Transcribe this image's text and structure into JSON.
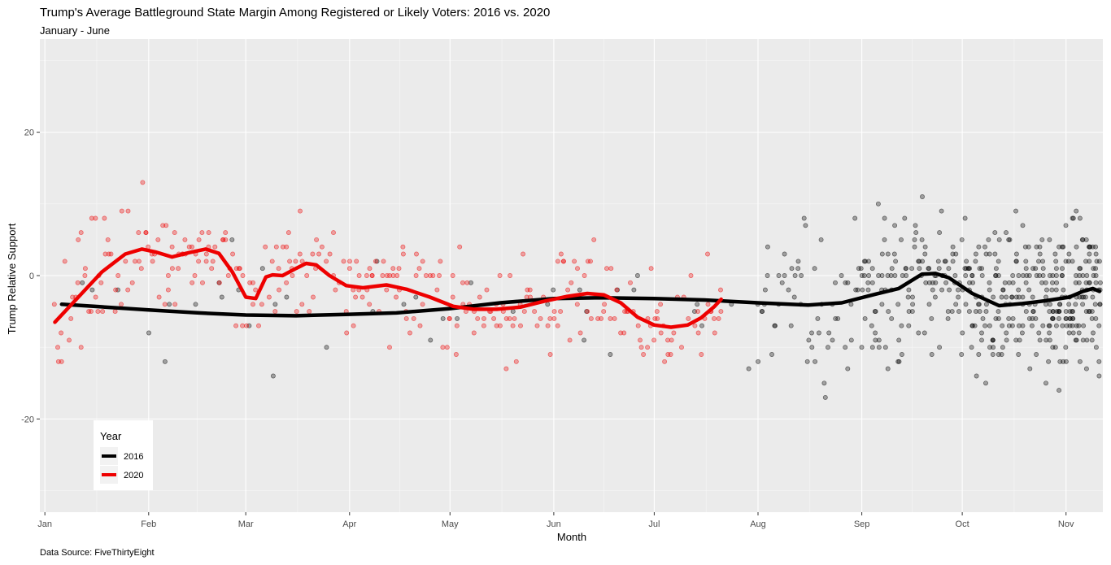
{
  "chart_data": {
    "type": "scatter",
    "title": "Trump's Average Battleground State Margin Among Registered or Likely Voters: 2016 vs. 2020",
    "subtitle": "January - June",
    "xlabel": "Month",
    "ylabel": "Trump Relative Support",
    "caption": "Data Source: FiveThirtyEight",
    "x_ticks": [
      "Jan",
      "Feb",
      "Mar",
      "Apr",
      "May",
      "Jun",
      "Jul",
      "Aug",
      "Sep",
      "Oct",
      "Nov"
    ],
    "y_ticks": [
      -20,
      0,
      20
    ],
    "ylim": [
      -33,
      33
    ],
    "xlim_days": [
      -1.5,
      316
    ],
    "grid": true,
    "legend": {
      "title": "Year",
      "placement": "bottom-left",
      "entries": [
        {
          "label": "2016",
          "color": "#000000"
        },
        {
          "label": "2020",
          "color": "#ee0000"
        }
      ]
    },
    "series": [
      {
        "name": "2016",
        "color": "#000000",
        "smooth": [
          [
            5,
            -4
          ],
          [
            15,
            -4.3
          ],
          [
            31,
            -4.8
          ],
          [
            46,
            -5.2
          ],
          [
            60,
            -5.5
          ],
          [
            75,
            -5.6
          ],
          [
            91,
            -5.4
          ],
          [
            105,
            -5.2
          ],
          [
            121,
            -4.6
          ],
          [
            136,
            -3.8
          ],
          [
            152,
            -3.2
          ],
          [
            166,
            -3.1
          ],
          [
            182,
            -3.2
          ],
          [
            197,
            -3.4
          ],
          [
            213,
            -3.8
          ],
          [
            228,
            -4.1
          ],
          [
            238,
            -3.8
          ],
          [
            248,
            -2.6
          ],
          [
            255,
            -1.8
          ],
          [
            262,
            0.2
          ],
          [
            266,
            0.3
          ],
          [
            270,
            -0.3
          ],
          [
            277,
            -2.5
          ],
          [
            285,
            -4.2
          ],
          [
            292,
            -3.9
          ],
          [
            299,
            -3.5
          ],
          [
            306,
            -3
          ],
          [
            310,
            -2.2
          ],
          [
            313,
            -1.8
          ],
          [
            315,
            -2.2
          ]
        ]
      },
      {
        "name": "2020",
        "color": "#ee0000",
        "smooth": [
          [
            3,
            -6.5
          ],
          [
            10,
            -3
          ],
          [
            17,
            0.5
          ],
          [
            24,
            3
          ],
          [
            29,
            3.7
          ],
          [
            33,
            3.3
          ],
          [
            38,
            2.6
          ],
          [
            43,
            3.2
          ],
          [
            48,
            3.7
          ],
          [
            52,
            3.1
          ],
          [
            56,
            0.5
          ],
          [
            60,
            -3
          ],
          [
            63,
            -3.2
          ],
          [
            66,
            -0.2
          ],
          [
            68,
            0.1
          ],
          [
            71,
            0
          ],
          [
            75,
            1
          ],
          [
            78,
            1.7
          ],
          [
            81,
            1.5
          ],
          [
            85,
            0
          ],
          [
            90,
            -1.4
          ],
          [
            95,
            -1.7
          ],
          [
            102,
            -1.3
          ],
          [
            108,
            -1.9
          ],
          [
            115,
            -3
          ],
          [
            122,
            -4.3
          ],
          [
            128,
            -4.7
          ],
          [
            135,
            -4.7
          ],
          [
            142,
            -4.4
          ],
          [
            149,
            -3.6
          ],
          [
            156,
            -2.9
          ],
          [
            162,
            -2.5
          ],
          [
            167,
            -2.7
          ],
          [
            172,
            -3.8
          ],
          [
            177,
            -5.8
          ],
          [
            182,
            -6.9
          ],
          [
            187,
            -7.2
          ],
          [
            192,
            -6.9
          ],
          [
            196,
            -5.9
          ],
          [
            200,
            -4.3
          ],
          [
            202,
            -3.3
          ]
        ]
      }
    ]
  }
}
